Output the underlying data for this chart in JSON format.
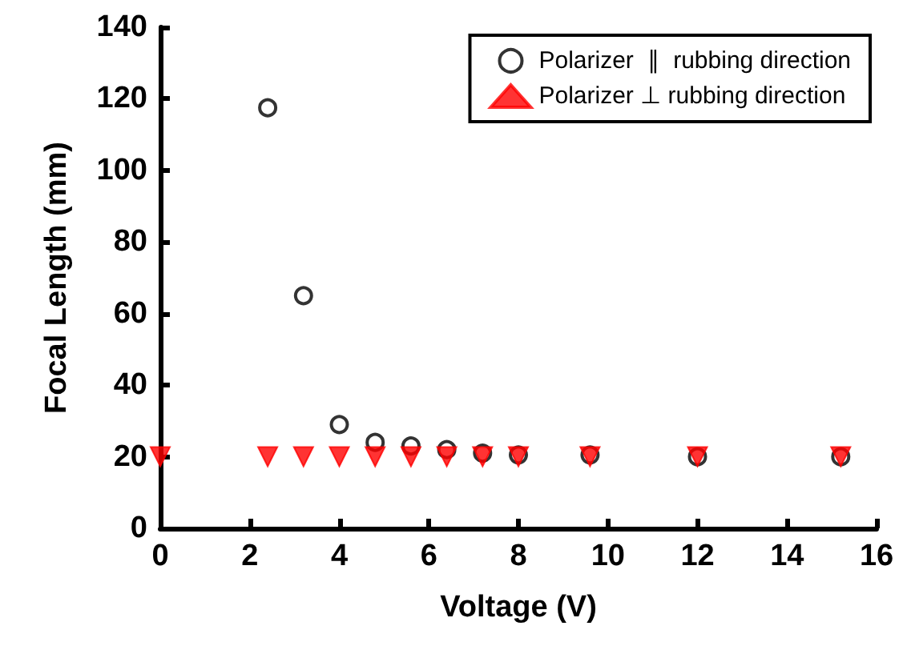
{
  "chart_data": {
    "type": "scatter",
    "xlabel": "Voltage (V)",
    "ylabel": "Focal Length (mm)",
    "xlim": [
      0,
      16
    ],
    "xticks": [
      0,
      2,
      4,
      6,
      8,
      10,
      12,
      14,
      16
    ],
    "ylim": [
      0,
      140
    ],
    "yticks": [
      0,
      20,
      40,
      60,
      80,
      100,
      120,
      140
    ],
    "grid": false,
    "legend": "top right",
    "series": [
      {
        "name": "Polarizer  ∥  rubbing direction",
        "color": "#000000",
        "marker": "circle",
        "x": [
          2.4,
          3.2,
          4.0,
          4.8,
          5.6,
          6.4,
          7.2,
          8.0,
          9.6,
          12,
          15.2
        ],
        "values": [
          117.5,
          65,
          29,
          24,
          23,
          22,
          21,
          20.5,
          20.5,
          20,
          20
        ]
      },
      {
        "name": "Polarizer ⊥ rubbing direction",
        "color": "#ff0000",
        "marker": "triangle",
        "x": [
          0,
          2.4,
          3.2,
          4.0,
          4.8,
          5.6,
          6.4,
          7.2,
          8.0,
          9.6,
          12,
          15.2
        ],
        "values": [
          20,
          20,
          20,
          20,
          20,
          20,
          20,
          20,
          20,
          20,
          20,
          20
        ]
      }
    ]
  }
}
